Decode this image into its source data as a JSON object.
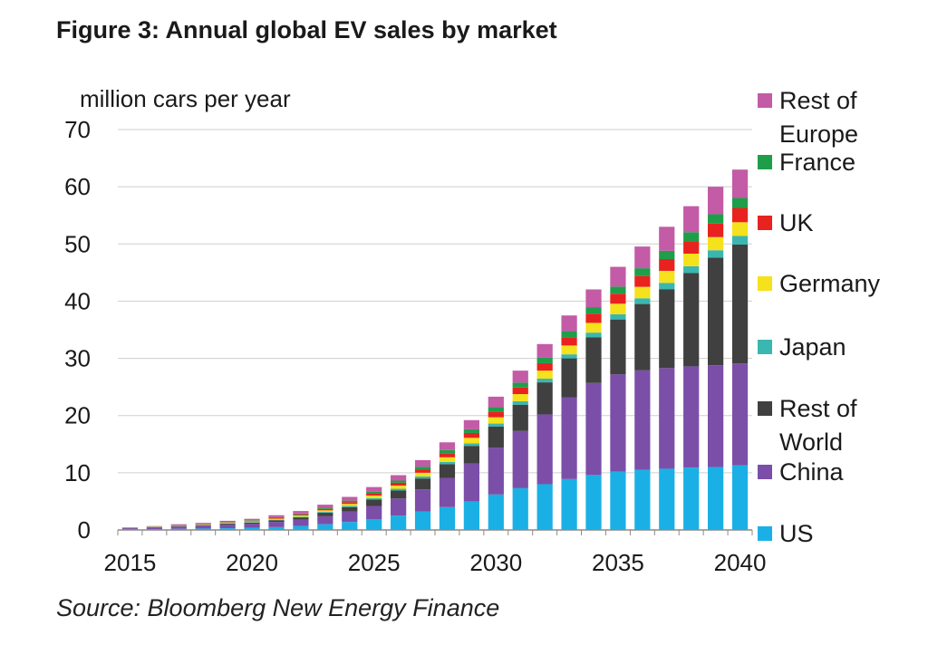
{
  "title": "Figure 3: Annual global EV sales by market",
  "source": "Source: Bloomberg New Energy Finance",
  "chart_data": {
    "type": "bar",
    "stacked": true,
    "title": "Figure 3: Annual global EV sales by market",
    "ylabel": "million cars per year",
    "xlabel": "",
    "ylim": [
      0,
      70
    ],
    "yticks": [
      0,
      10,
      20,
      30,
      40,
      50,
      60,
      70
    ],
    "xtick_labels": [
      "2015",
      "2020",
      "2025",
      "2030",
      "2035",
      "2040"
    ],
    "grid": "horizontal",
    "legend_position": "right",
    "categories": [
      "2015",
      "2016",
      "2017",
      "2018",
      "2019",
      "2020",
      "2021",
      "2022",
      "2023",
      "2024",
      "2025",
      "2026",
      "2027",
      "2028",
      "2029",
      "2030",
      "2031",
      "2032",
      "2033",
      "2034",
      "2035",
      "2036",
      "2037",
      "2038",
      "2039",
      "2040"
    ],
    "series": [
      {
        "name": "US",
        "color": "#1ab0e6",
        "values": [
          0.1,
          0.15,
          0.2,
          0.25,
          0.3,
          0.4,
          0.5,
          0.7,
          1.0,
          1.4,
          1.9,
          2.5,
          3.2,
          4.0,
          5.0,
          6.2,
          7.3,
          8.0,
          8.9,
          9.6,
          10.2,
          10.5,
          10.7,
          10.9,
          11.0,
          11.3
        ]
      },
      {
        "name": "China",
        "color": "#7b4fa8",
        "values": [
          0.2,
          0.3,
          0.4,
          0.5,
          0.6,
          0.7,
          0.9,
          1.1,
          1.4,
          1.8,
          2.3,
          3.0,
          3.9,
          5.1,
          6.6,
          8.2,
          10.0,
          12.2,
          14.3,
          16.1,
          17.0,
          17.4,
          17.6,
          17.7,
          17.8,
          17.8
        ]
      },
      {
        "name": "Rest of World",
        "color": "#404040",
        "values": [
          0.05,
          0.05,
          0.1,
          0.1,
          0.2,
          0.2,
          0.3,
          0.4,
          0.6,
          0.8,
          1.1,
          1.4,
          1.9,
          2.4,
          3.1,
          3.7,
          4.6,
          5.6,
          6.8,
          8.0,
          9.6,
          11.6,
          13.8,
          16.3,
          18.8,
          20.8
        ]
      },
      {
        "name": "Japan",
        "color": "#3ab7b0",
        "values": [
          0.02,
          0.03,
          0.04,
          0.05,
          0.05,
          0.07,
          0.1,
          0.12,
          0.15,
          0.2,
          0.25,
          0.3,
          0.35,
          0.4,
          0.45,
          0.5,
          0.6,
          0.65,
          0.7,
          0.8,
          0.9,
          1.0,
          1.1,
          1.2,
          1.3,
          1.5
        ]
      },
      {
        "name": "Germany",
        "color": "#f5e11c",
        "values": [
          0.02,
          0.03,
          0.05,
          0.07,
          0.1,
          0.13,
          0.18,
          0.22,
          0.28,
          0.35,
          0.45,
          0.55,
          0.65,
          0.8,
          0.95,
          1.1,
          1.25,
          1.4,
          1.55,
          1.7,
          1.85,
          2.0,
          2.1,
          2.2,
          2.3,
          2.4
        ]
      },
      {
        "name": "UK",
        "color": "#e8231f",
        "values": [
          0.02,
          0.03,
          0.05,
          0.06,
          0.08,
          0.11,
          0.15,
          0.2,
          0.26,
          0.33,
          0.4,
          0.5,
          0.6,
          0.72,
          0.85,
          1.0,
          1.15,
          1.3,
          1.45,
          1.6,
          1.75,
          1.9,
          2.05,
          2.2,
          2.35,
          2.5
        ]
      },
      {
        "name": "France",
        "color": "#1f9e4a",
        "values": [
          0.02,
          0.02,
          0.04,
          0.05,
          0.07,
          0.09,
          0.12,
          0.15,
          0.2,
          0.25,
          0.3,
          0.38,
          0.46,
          0.55,
          0.65,
          0.75,
          0.85,
          0.95,
          1.05,
          1.15,
          1.25,
          1.35,
          1.45,
          1.55,
          1.65,
          1.75
        ]
      },
      {
        "name": "Rest of Europe",
        "color": "#c35ba6",
        "values": [
          0.05,
          0.07,
          0.12,
          0.15,
          0.2,
          0.25,
          0.33,
          0.42,
          0.53,
          0.65,
          0.8,
          0.95,
          1.15,
          1.35,
          1.6,
          1.85,
          2.1,
          2.4,
          2.75,
          3.1,
          3.45,
          3.8,
          4.2,
          4.55,
          4.8,
          4.95
        ]
      }
    ],
    "legend": [
      {
        "label": "Rest of Europe",
        "lines": [
          "Rest of",
          "Europe"
        ],
        "color": "#c35ba6"
      },
      {
        "label": "France",
        "lines": [
          "France"
        ],
        "color": "#1f9e4a"
      },
      {
        "label": "UK",
        "lines": [
          "UK"
        ],
        "color": "#e8231f"
      },
      {
        "label": "Germany",
        "lines": [
          "Germany"
        ],
        "color": "#f5e11c"
      },
      {
        "label": "Japan",
        "lines": [
          "Japan"
        ],
        "color": "#3ab7b0"
      },
      {
        "label": "Rest of World",
        "lines": [
          "Rest of",
          "World"
        ],
        "color": "#404040"
      },
      {
        "label": "China",
        "lines": [
          "China"
        ],
        "color": "#7b4fa8"
      },
      {
        "label": "US",
        "lines": [
          "US"
        ],
        "color": "#1ab0e6"
      }
    ]
  }
}
